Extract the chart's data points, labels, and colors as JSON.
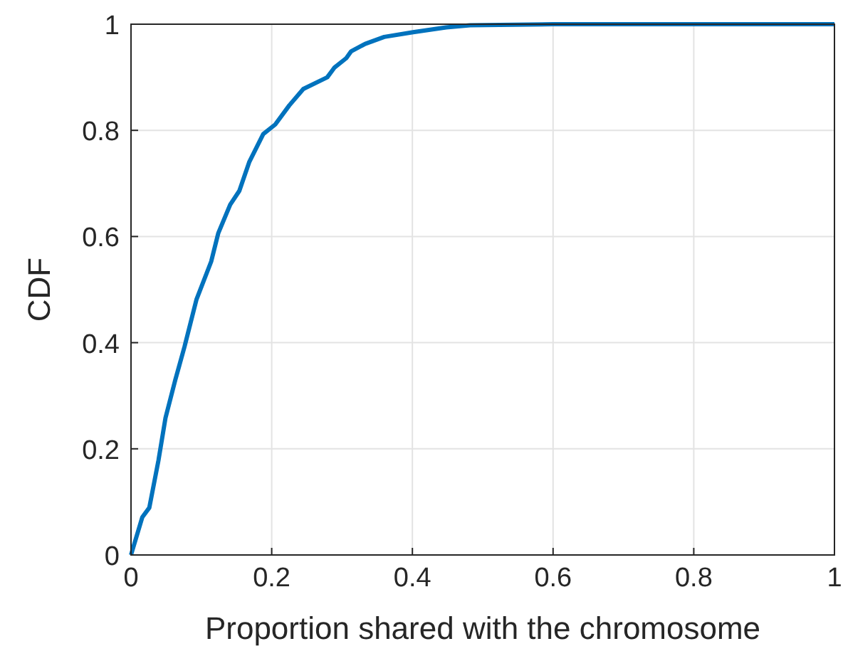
{
  "chart_data": {
    "type": "step",
    "xlabel": "Proportion shared with the chromosome",
    "ylabel": "CDF",
    "xlim": [
      0,
      1
    ],
    "ylim": [
      0,
      1
    ],
    "xticks": [
      0,
      0.2,
      0.4,
      0.6,
      0.8,
      1
    ],
    "yticks": [
      0,
      0.2,
      0.4,
      0.6,
      0.8,
      1
    ],
    "grid": true,
    "series": [
      {
        "color": "#0072bd",
        "x": [
          0,
          0.016,
          0.026,
          0.039,
          0.049,
          0.063,
          0.076,
          0.093,
          0.114,
          0.124,
          0.141,
          0.154,
          0.168,
          0.188,
          0.205,
          0.225,
          0.245,
          0.279,
          0.289,
          0.306,
          0.313,
          0.333,
          0.36,
          0.401,
          0.448,
          0.482,
          0.6,
          1
        ],
        "values": [
          0,
          0.071,
          0.089,
          0.178,
          0.258,
          0.33,
          0.392,
          0.481,
          0.553,
          0.606,
          0.66,
          0.686,
          0.74,
          0.793,
          0.811,
          0.847,
          0.878,
          0.9,
          0.918,
          0.936,
          0.949,
          0.963,
          0.976,
          0.985,
          0.994,
          0.998,
          1,
          1
        ]
      }
    ]
  }
}
